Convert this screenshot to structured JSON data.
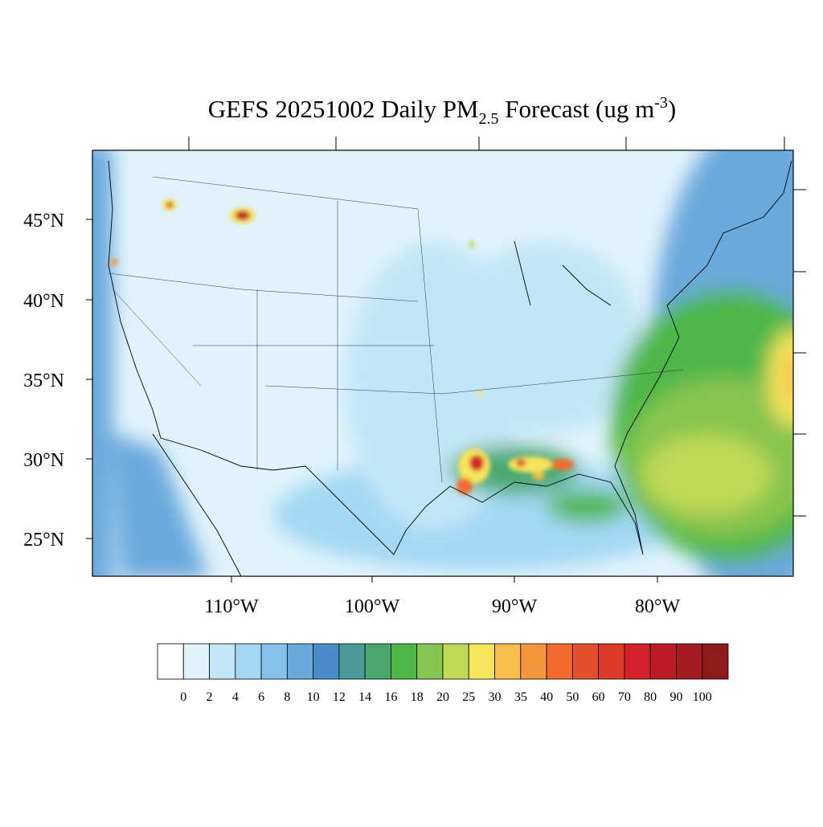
{
  "title": {
    "main": "GEFS 20251002 Daily PM",
    "subscript": "2.5",
    "middle": " Forecast (ug m",
    "superscript": "-3",
    "end": ")"
  },
  "lat_labels": [
    "45°N",
    "40°N",
    "35°N",
    "30°N",
    "25°N"
  ],
  "lon_labels": [
    "110°W",
    "100°W",
    "90°W",
    "80°W"
  ],
  "colorbar": {
    "levels": [
      0,
      2,
      4,
      6,
      8,
      10,
      12,
      14,
      16,
      18,
      20,
      25,
      30,
      35,
      40,
      50,
      60,
      70,
      80,
      90,
      100
    ],
    "colors": [
      "#ffffff",
      "#e0f3fb",
      "#c2e6f7",
      "#a3d8f4",
      "#85c1e9",
      "#6aa9dc",
      "#4a8ccb",
      "#4a9a9a",
      "#4aa86e",
      "#4db748",
      "#86c550",
      "#c0d855",
      "#f6e55a",
      "#f8bd4a",
      "#f6963c",
      "#f26b2c",
      "#e5502c",
      "#dd3a27",
      "#d4202b",
      "#bd1b25",
      "#a51c20",
      "#8e1a1a"
    ]
  }
}
